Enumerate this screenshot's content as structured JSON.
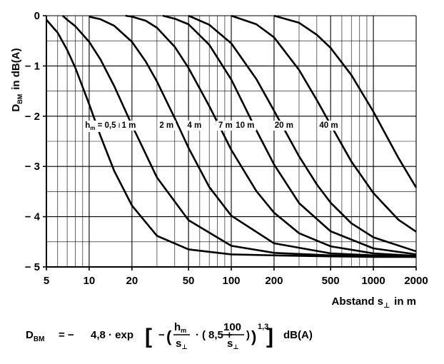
{
  "chart_data": {
    "type": "line",
    "x_scale": "log",
    "xlim": [
      5,
      2000
    ],
    "ylim": [
      -5,
      0
    ],
    "grid": true,
    "ylabel": "D",
    "ylabel_sub": "BM",
    "ylabel_unit": "in dB(A)",
    "xlabel": "Abstand s",
    "xlabel_sub": "⊥",
    "xlabel_unit": "in m",
    "x_ticks": [
      {
        "value": 5,
        "label": "5"
      },
      {
        "value": 10,
        "label": "10"
      },
      {
        "value": 20,
        "label": "20"
      },
      {
        "value": 50,
        "label": "50"
      },
      {
        "value": 100,
        "label": "100"
      },
      {
        "value": 200,
        "label": "200"
      },
      {
        "value": 500,
        "label": "500"
      },
      {
        "value": 1000,
        "label": "1000"
      },
      {
        "value": 2000,
        "label": "2000"
      }
    ],
    "y_ticks": [
      {
        "value": 0,
        "label": "0"
      },
      {
        "value": -1,
        "label": "− 1"
      },
      {
        "value": -2,
        "label": "− 2"
      },
      {
        "value": -3,
        "label": "− 3"
      },
      {
        "value": -4,
        "label": "− 4"
      },
      {
        "value": -5,
        "label": "− 5"
      }
    ],
    "x_minor_gridlines": [
      6,
      7,
      8,
      9,
      30,
      40,
      60,
      70,
      80,
      90,
      300,
      400,
      600,
      700,
      800,
      900
    ],
    "y_minor_gridlines": [
      -0.5,
      -1.5,
      -2.5,
      -3.5,
      -4.5
    ],
    "series": [
      {
        "label": "0,5 m",
        "label_prefix": "h",
        "label_prefix_sub": "m",
        "label_equals": " = ",
        "h_m": 0.5,
        "label_x": 13,
        "x": [
          5,
          6,
          7,
          8,
          10,
          12,
          15,
          20,
          30,
          50,
          100,
          200,
          500,
          1000,
          2000
        ],
        "y": [
          -0.08,
          -0.34,
          -0.68,
          -1.04,
          -1.76,
          -2.39,
          -3.09,
          -3.78,
          -4.38,
          -4.65,
          -4.75,
          -4.77,
          -4.79,
          -4.8,
          -4.8
        ]
      },
      {
        "label": "1 m",
        "h_m": 1,
        "label_x": 19,
        "x": [
          6.5,
          7,
          8,
          10,
          12,
          15,
          20,
          30,
          50,
          100,
          200,
          500,
          1000,
          2000
        ],
        "y": [
          0,
          -0.08,
          -0.21,
          -0.52,
          -0.87,
          -1.4,
          -2.18,
          -3.22,
          -4.07,
          -4.58,
          -4.72,
          -4.77,
          -4.79,
          -4.8
        ]
      },
      {
        "label": "2 m",
        "h_m": 2,
        "label_x": 35,
        "x": [
          10,
          12,
          15,
          20,
          25,
          30,
          40,
          50,
          70,
          100,
          200,
          500,
          1000,
          2000
        ],
        "y": [
          -0.02,
          -0.07,
          -0.2,
          -0.52,
          -0.91,
          -1.31,
          -2.04,
          -2.63,
          -3.41,
          -3.98,
          -4.53,
          -4.73,
          -4.77,
          -4.79
        ]
      },
      {
        "label": "4 m",
        "h_m": 4,
        "label_x": 55,
        "x": [
          18,
          20,
          25,
          30,
          40,
          50,
          70,
          100,
          150,
          200,
          300,
          500,
          1000,
          2000
        ],
        "y": [
          0,
          -0.02,
          -0.1,
          -0.24,
          -0.62,
          -1.04,
          -1.8,
          -2.67,
          -3.49,
          -3.92,
          -4.33,
          -4.59,
          -4.73,
          -4.78
        ]
      },
      {
        "label": "7 m",
        "h_m": 7,
        "label_x": 91,
        "x": [
          33,
          40,
          50,
          70,
          100,
          150,
          200,
          300,
          500,
          1000,
          2000
        ],
        "y": [
          0,
          -0.06,
          -0.17,
          -0.58,
          -1.27,
          -2.28,
          -2.96,
          -3.73,
          -4.29,
          -4.63,
          -4.75
        ]
      },
      {
        "label": "10 m",
        "h_m": 10,
        "label_x": 125,
        "x": [
          50,
          70,
          100,
          150,
          200,
          300,
          400,
          500,
          700,
          1000,
          2000
        ],
        "y": [
          0,
          -0.18,
          -0.55,
          -1.26,
          -1.89,
          -2.8,
          -3.36,
          -3.72,
          -4.13,
          -4.41,
          -4.69
        ]
      },
      {
        "label": "20 m",
        "h_m": 20,
        "label_x": 235,
        "x": [
          100,
          150,
          200,
          300,
          400,
          500,
          700,
          1000,
          1500,
          2000
        ],
        "y": [
          0,
          -0.17,
          -0.43,
          -1.08,
          -1.68,
          -2.17,
          -2.9,
          -3.53,
          -4.06,
          -4.3
        ]
      },
      {
        "label": "40 m",
        "h_m": 40,
        "label_x": 485,
        "x": [
          200,
          300,
          400,
          500,
          700,
          1000,
          1500,
          2000
        ],
        "y": [
          0,
          -0.14,
          -0.38,
          -0.64,
          -1.18,
          -1.91,
          -2.83,
          -3.42
        ]
      }
    ]
  },
  "formula": {
    "lhs": "D",
    "lhs_sub": "BM",
    "equals": "= −",
    "coefficient": "4,8 · exp",
    "minus": "−",
    "frac1_num": "h",
    "frac1_num_sub": "m",
    "frac1_den": "s",
    "frac1_den_sub": "⊥",
    "dot": "·",
    "inner_const": "8,5 +",
    "frac2_num": "100",
    "frac2_den": "s",
    "frac2_den_sub": "⊥",
    "exponent": "1,3",
    "unit": "dB(A)"
  }
}
